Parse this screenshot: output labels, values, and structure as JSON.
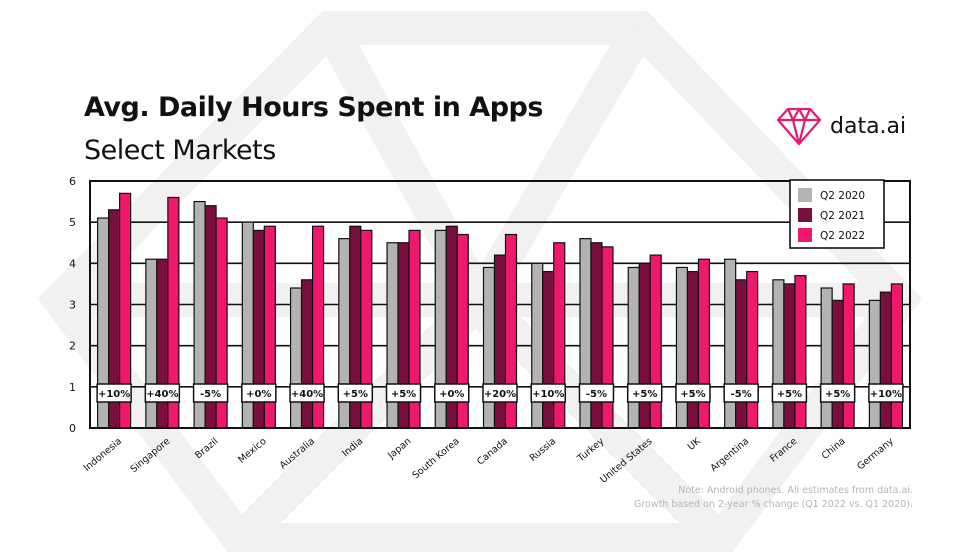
{
  "header": {
    "title": "Avg. Daily Hours Spent in Apps",
    "subtitle": "Select Markets",
    "logo_text": "data.ai"
  },
  "notes": [
    "Note: Android phones. All estimates from data.ai.",
    "Growth based on 2-year % change (Q1 2022 vs. Q1 2020)."
  ],
  "colors": {
    "q2_2020": "#b3b3b3",
    "q2_2021": "#7a0f3f",
    "q2_2022": "#f0176e",
    "brand": "#e8196f"
  },
  "chart_data": {
    "type": "bar",
    "ylim": [
      0,
      6
    ],
    "yticks": [
      0,
      1,
      2,
      3,
      4,
      5,
      6
    ],
    "categories": [
      "Indonesia",
      "Singapore",
      "Brazil",
      "Mexico",
      "Australia",
      "India",
      "Japan",
      "South Korea",
      "Canada",
      "Russia",
      "Turkey",
      "United States",
      "UK",
      "Argentina",
      "France",
      "China",
      "Germany"
    ],
    "series": [
      {
        "name": "Q2 2020",
        "color": "#b3b3b3",
        "values": [
          5.1,
          4.1,
          5.5,
          5.0,
          3.4,
          4.6,
          4.5,
          4.8,
          3.9,
          4.0,
          4.6,
          3.9,
          3.9,
          4.1,
          3.6,
          3.4,
          3.1
        ]
      },
      {
        "name": "Q2 2021",
        "color": "#7a0f3f",
        "values": [
          5.3,
          4.1,
          5.4,
          4.8,
          3.6,
          4.9,
          4.5,
          4.9,
          4.2,
          3.8,
          4.5,
          4.0,
          3.8,
          3.6,
          3.5,
          3.1,
          3.3
        ]
      },
      {
        "name": "Q2 2022",
        "color": "#f0176e",
        "values": [
          5.7,
          5.6,
          5.1,
          4.9,
          4.9,
          4.8,
          4.8,
          4.7,
          4.7,
          4.5,
          4.4,
          4.2,
          4.1,
          3.8,
          3.7,
          3.5,
          3.5
        ]
      }
    ],
    "growth_labels": [
      "+10%",
      "+40%",
      "-5%",
      "+0%",
      "+40%",
      "+5%",
      "+5%",
      "+0%",
      "+20%",
      "+10%",
      "-5%",
      "+5%",
      "+5%",
      "-5%",
      "+5%",
      "+5%",
      "+10%"
    ],
    "legend": {
      "position": "top-right",
      "items": [
        "Q2 2020",
        "Q2 2021",
        "Q2 2022"
      ]
    },
    "grid": true
  }
}
